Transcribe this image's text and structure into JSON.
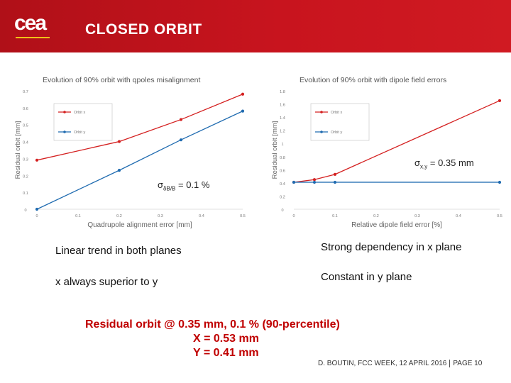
{
  "header": {
    "logo_text": "cea",
    "title": "CLOSED ORBIT"
  },
  "chart_data": [
    {
      "type": "line",
      "title": "Evolution of 90% orbit with qpoles misalignment",
      "xlabel": "Quadrupole alignment error [mm]",
      "ylabel": "Residual orbit [mm]",
      "xlim": [
        0,
        0.5
      ],
      "ylim": [
        0,
        0.7
      ],
      "xticks": [
        0,
        0.1,
        0.2,
        0.3,
        0.4,
        0.5
      ],
      "yticks": [
        0,
        0.1,
        0.2,
        0.3,
        0.4,
        0.5,
        0.6,
        0.7
      ],
      "xtick_labels": [
        "0",
        "0.1",
        "0.2",
        "0.3",
        "0.4",
        "0.5"
      ],
      "ytick_labels": [
        "0",
        "0.1",
        "0.2",
        "0.3",
        "0.4",
        "0.5",
        "0.6",
        "0.7"
      ],
      "legend_placement": "top-left",
      "series": [
        {
          "name": "Orbit x",
          "color": "#d42020",
          "x": [
            0,
            0.2,
            0.35,
            0.5
          ],
          "y": [
            0.29,
            0.4,
            0.53,
            0.68
          ]
        },
        {
          "name": "Orbit y",
          "color": "#1f6bb0",
          "x": [
            0,
            0.2,
            0.35,
            0.5
          ],
          "y": [
            0.0,
            0.23,
            0.41,
            0.58
          ]
        }
      ]
    },
    {
      "type": "line",
      "title": "Evolution of 90% orbit with dipole field errors",
      "xlabel": "Relative dipole field error [%]",
      "ylabel": "Residual orbit [mm]",
      "xlim": [
        0,
        0.5
      ],
      "ylim": [
        0,
        1.8
      ],
      "xticks": [
        0,
        0.1,
        0.2,
        0.3,
        0.4,
        0.5
      ],
      "yticks": [
        0,
        0.2,
        0.4,
        0.6,
        0.8,
        1.0,
        1.2,
        1.4,
        1.6,
        1.8
      ],
      "xtick_labels": [
        "0",
        "0.1",
        "0.2",
        "0.3",
        "0.4",
        "0.5"
      ],
      "ytick_labels": [
        "0",
        "0.2",
        "0.4",
        "0.6",
        "0.8",
        "1",
        "1.2",
        "1.4",
        "1.6",
        "1.8"
      ],
      "legend_placement": "top-left",
      "series": [
        {
          "name": "Orbit x",
          "color": "#d42020",
          "x": [
            0,
            0.05,
            0.1,
            0.5
          ],
          "y": [
            0.41,
            0.45,
            0.53,
            1.65
          ]
        },
        {
          "name": "Orbit y",
          "color": "#1f6bb0",
          "x": [
            0,
            0.05,
            0.1,
            0.5
          ],
          "y": [
            0.41,
            0.41,
            0.41,
            0.41
          ]
        }
      ]
    }
  ],
  "annotations": {
    "sigma_b": {
      "symbol": "σ",
      "sub": "δB/B",
      "text": " = 0.1 %"
    },
    "sigma_xy": {
      "symbol": "σ",
      "sub": "x,y",
      "text": " = 0.35 mm"
    }
  },
  "text": {
    "left1": "Linear trend in both planes",
    "left2": "x always superior to y",
    "right1": "Strong dependency in x plane",
    "right2": "Constant in y plane"
  },
  "summary": {
    "line1": "Residual orbit @ 0.35 mm, 0.1 % (90-percentile)",
    "line2": "X = 0.53 mm",
    "line3": "Y = 0.41 mm"
  },
  "footer": {
    "author": "D. BOUTIN, FCC WEEK, 12 APRIL 2016",
    "page": "PAGE 10"
  },
  "colors": {
    "header_red": "#c8141e",
    "summary_red": "#c00000",
    "series_x": "#d42020",
    "series_y": "#1f6bb0"
  }
}
